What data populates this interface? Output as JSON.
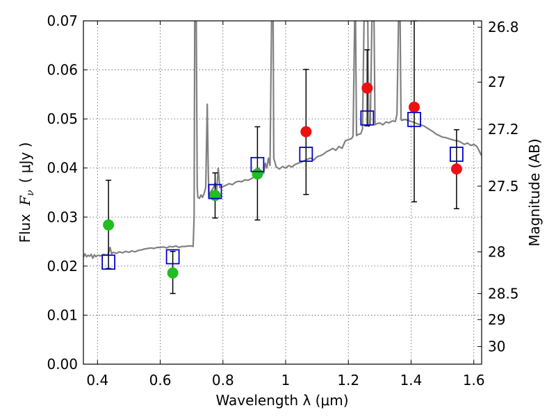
{
  "chart_data": {
    "type": "scatter",
    "xlabel": "Wavelength  λ (μm)",
    "ylabel_left_text": "Flux",
    "ylabel_left_symbol": "F",
    "ylabel_left_subscript": "ν",
    "ylabel_left_unit": "( μJy )",
    "ylabel_right": "Magnitude (AB)",
    "xlim": [
      0.355,
      1.625
    ],
    "ylim": [
      0.0,
      0.07
    ],
    "grid": true,
    "x_ticks": [
      {
        "value": 0.4,
        "label": "0.4"
      },
      {
        "value": 0.6,
        "label": "0.6"
      },
      {
        "value": 0.8,
        "label": "0.8"
      },
      {
        "value": 1.0,
        "label": "1"
      },
      {
        "value": 1.2,
        "label": "1.2"
      },
      {
        "value": 1.4,
        "label": "1.4"
      },
      {
        "value": 1.6,
        "label": "1.6"
      }
    ],
    "y_ticks": [
      {
        "value": 0.0,
        "label": "0.00"
      },
      {
        "value": 0.01,
        "label": "0.01"
      },
      {
        "value": 0.02,
        "label": "0.02"
      },
      {
        "value": 0.03,
        "label": "0.03"
      },
      {
        "value": 0.04,
        "label": "0.04"
      },
      {
        "value": 0.05,
        "label": "0.05"
      },
      {
        "value": 0.06,
        "label": "0.06"
      },
      {
        "value": 0.07,
        "label": "0.07"
      }
    ],
    "right_ticks": [
      {
        "flux": 0.0687,
        "label": "26.8"
      },
      {
        "flux": 0.0575,
        "label": "27"
      },
      {
        "flux": 0.0479,
        "label": "27.2"
      },
      {
        "flux": 0.0363,
        "label": "27.5"
      },
      {
        "flux": 0.0229,
        "label": "28"
      },
      {
        "flux": 0.0144,
        "label": "28.5"
      },
      {
        "flux": 0.0091,
        "label": "29"
      },
      {
        "flux": 0.0036,
        "label": "30"
      }
    ],
    "colors": {
      "model": "#808080",
      "green": "#1fbf1f",
      "red": "#ee1111",
      "model_box": "#0000cc",
      "errorbar": "#000000",
      "axis": "#000000"
    },
    "model_spectrum": [
      [
        0.355,
        0.0218
      ],
      [
        0.36,
        0.0225
      ],
      [
        0.365,
        0.0219
      ],
      [
        0.37,
        0.0222
      ],
      [
        0.375,
        0.022
      ],
      [
        0.38,
        0.0224
      ],
      [
        0.385,
        0.0216
      ],
      [
        0.39,
        0.0223
      ],
      [
        0.395,
        0.0219
      ],
      [
        0.4,
        0.0222
      ],
      [
        0.41,
        0.0221
      ],
      [
        0.42,
        0.0224
      ],
      [
        0.43,
        0.0222
      ],
      [
        0.435,
        0.0226
      ],
      [
        0.44,
        0.0238
      ],
      [
        0.445,
        0.0225
      ],
      [
        0.45,
        0.0228
      ],
      [
        0.46,
        0.0226
      ],
      [
        0.47,
        0.0229
      ],
      [
        0.48,
        0.0227
      ],
      [
        0.49,
        0.023
      ],
      [
        0.5,
        0.0228
      ],
      [
        0.51,
        0.0231
      ],
      [
        0.52,
        0.0229
      ],
      [
        0.53,
        0.0232
      ],
      [
        0.54,
        0.0233
      ],
      [
        0.55,
        0.0235
      ],
      [
        0.56,
        0.0236
      ],
      [
        0.57,
        0.0237
      ],
      [
        0.58,
        0.0236
      ],
      [
        0.59,
        0.0238
      ],
      [
        0.6,
        0.0238
      ],
      [
        0.61,
        0.0239
      ],
      [
        0.62,
        0.0237
      ],
      [
        0.63,
        0.024
      ],
      [
        0.64,
        0.0239
      ],
      [
        0.65,
        0.0241
      ],
      [
        0.66,
        0.0238
      ],
      [
        0.67,
        0.024
      ],
      [
        0.68,
        0.024
      ],
      [
        0.69,
        0.0241
      ],
      [
        0.7,
        0.0241
      ],
      [
        0.705,
        0.024
      ],
      [
        0.708,
        0.03
      ],
      [
        0.71,
        0.07
      ],
      [
        0.715,
        0.07
      ],
      [
        0.718,
        0.036
      ],
      [
        0.72,
        0.034
      ],
      [
        0.725,
        0.0338
      ],
      [
        0.73,
        0.0345
      ],
      [
        0.735,
        0.034
      ],
      [
        0.74,
        0.0348
      ],
      [
        0.745,
        0.036
      ],
      [
        0.75,
        0.053
      ],
      [
        0.753,
        0.04
      ],
      [
        0.755,
        0.034
      ],
      [
        0.76,
        0.035
      ],
      [
        0.77,
        0.036
      ],
      [
        0.775,
        0.037
      ],
      [
        0.78,
        0.0355
      ],
      [
        0.785,
        0.04
      ],
      [
        0.79,
        0.036
      ],
      [
        0.8,
        0.0362
      ],
      [
        0.81,
        0.0365
      ],
      [
        0.82,
        0.0368
      ],
      [
        0.83,
        0.0366
      ],
      [
        0.84,
        0.0371
      ],
      [
        0.85,
        0.0373
      ],
      [
        0.86,
        0.0372
      ],
      [
        0.87,
        0.0376
      ],
      [
        0.88,
        0.0375
      ],
      [
        0.89,
        0.0378
      ],
      [
        0.9,
        0.0382
      ],
      [
        0.91,
        0.039
      ],
      [
        0.915,
        0.04
      ],
      [
        0.92,
        0.0385
      ],
      [
        0.93,
        0.039
      ],
      [
        0.935,
        0.041
      ],
      [
        0.94,
        0.04
      ],
      [
        0.945,
        0.042
      ],
      [
        0.95,
        0.0405
      ],
      [
        0.955,
        0.07
      ],
      [
        0.96,
        0.07
      ],
      [
        0.962,
        0.042
      ],
      [
        0.97,
        0.0402
      ],
      [
        0.98,
        0.0398
      ],
      [
        0.99,
        0.0403
      ],
      [
        1.0,
        0.04
      ],
      [
        1.01,
        0.0405
      ],
      [
        1.02,
        0.0402
      ],
      [
        1.03,
        0.0407
      ],
      [
        1.04,
        0.041
      ],
      [
        1.05,
        0.0412
      ],
      [
        1.06,
        0.0415
      ],
      [
        1.07,
        0.0418
      ],
      [
        1.08,
        0.042
      ],
      [
        1.09,
        0.0416
      ],
      [
        1.1,
        0.0423
      ],
      [
        1.11,
        0.0425
      ],
      [
        1.12,
        0.0428
      ],
      [
        1.13,
        0.0433
      ],
      [
        1.14,
        0.0436
      ],
      [
        1.15,
        0.044
      ],
      [
        1.16,
        0.0436
      ],
      [
        1.17,
        0.0444
      ],
      [
        1.18,
        0.044
      ],
      [
        1.19,
        0.0455
      ],
      [
        1.2,
        0.0458
      ],
      [
        1.21,
        0.046
      ],
      [
        1.215,
        0.0465
      ],
      [
        1.22,
        0.07
      ],
      [
        1.223,
        0.07
      ],
      [
        1.226,
        0.0466
      ],
      [
        1.23,
        0.0468
      ],
      [
        1.24,
        0.047
      ],
      [
        1.245,
        0.048
      ],
      [
        1.25,
        0.07
      ],
      [
        1.262,
        0.07
      ],
      [
        1.265,
        0.0485
      ],
      [
        1.27,
        0.049
      ],
      [
        1.275,
        0.07
      ],
      [
        1.282,
        0.07
      ],
      [
        1.285,
        0.0488
      ],
      [
        1.29,
        0.049
      ],
      [
        1.3,
        0.0492
      ],
      [
        1.31,
        0.0488
      ],
      [
        1.32,
        0.0494
      ],
      [
        1.33,
        0.0492
      ],
      [
        1.34,
        0.0496
      ],
      [
        1.35,
        0.0495
      ],
      [
        1.355,
        0.051
      ],
      [
        1.36,
        0.07
      ],
      [
        1.365,
        0.07
      ],
      [
        1.368,
        0.05
      ],
      [
        1.37,
        0.0497
      ],
      [
        1.38,
        0.0499
      ],
      [
        1.39,
        0.0497
      ],
      [
        1.4,
        0.0495
      ],
      [
        1.41,
        0.0493
      ],
      [
        1.42,
        0.049
      ],
      [
        1.43,
        0.0488
      ],
      [
        1.44,
        0.0486
      ],
      [
        1.45,
        0.0482
      ],
      [
        1.46,
        0.0478
      ],
      [
        1.47,
        0.0474
      ],
      [
        1.48,
        0.0469
      ],
      [
        1.49,
        0.0466
      ],
      [
        1.5,
        0.0463
      ],
      [
        1.51,
        0.0462
      ],
      [
        1.52,
        0.046
      ],
      [
        1.53,
        0.0458
      ],
      [
        1.54,
        0.0456
      ],
      [
        1.55,
        0.0455
      ],
      [
        1.56,
        0.0452
      ],
      [
        1.57,
        0.0448
      ],
      [
        1.58,
        0.0451
      ],
      [
        1.59,
        0.0446
      ],
      [
        1.6,
        0.0448
      ],
      [
        1.61,
        0.0444
      ],
      [
        1.625,
        0.0425
      ]
    ],
    "model_photometry": [
      {
        "x": 0.435,
        "y": 0.0208
      },
      {
        "x": 0.64,
        "y": 0.0219
      },
      {
        "x": 0.775,
        "y": 0.0352
      },
      {
        "x": 0.91,
        "y": 0.0407
      },
      {
        "x": 1.065,
        "y": 0.0428
      },
      {
        "x": 1.26,
        "y": 0.0502
      },
      {
        "x": 1.41,
        "y": 0.0499
      },
      {
        "x": 1.545,
        "y": 0.0428
      }
    ],
    "observed": [
      {
        "x": 0.435,
        "y": 0.0284,
        "err_low": 0.0195,
        "err_high": 0.0375,
        "color": "green"
      },
      {
        "x": 0.64,
        "y": 0.0186,
        "err_low": 0.0144,
        "err_high": 0.023,
        "color": "green"
      },
      {
        "x": 0.775,
        "y": 0.0344,
        "err_low": 0.0298,
        "err_high": 0.039,
        "color": "green"
      },
      {
        "x": 0.91,
        "y": 0.0388,
        "err_low": 0.0294,
        "err_high": 0.0484,
        "color": "green"
      },
      {
        "x": 1.065,
        "y": 0.0474,
        "err_low": 0.0346,
        "err_high": 0.0601,
        "color": "red"
      },
      {
        "x": 1.26,
        "y": 0.0563,
        "err_low": 0.0486,
        "err_high": 0.0641,
        "color": "red"
      },
      {
        "x": 1.41,
        "y": 0.0524,
        "err_low": 0.0331,
        "err_high": 0.07,
        "color": "red"
      },
      {
        "x": 1.545,
        "y": 0.0398,
        "err_low": 0.0317,
        "err_high": 0.0478,
        "color": "red"
      }
    ]
  }
}
